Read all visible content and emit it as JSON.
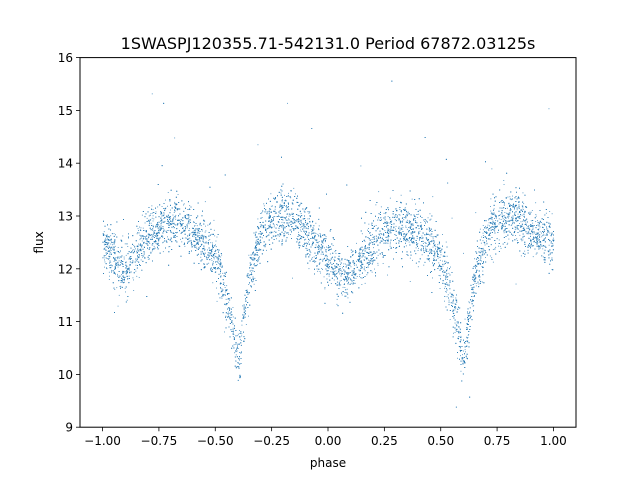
{
  "chart_data": {
    "type": "scatter",
    "title": "1SWASPJ120355.71-542131.0 Period 67872.03125s",
    "xlabel": "phase",
    "ylabel": "flux",
    "xlim": [
      -1.1,
      1.1
    ],
    "ylim": [
      9,
      16
    ],
    "xticks": [
      -1.0,
      -0.75,
      -0.5,
      -0.25,
      0.0,
      0.25,
      0.5,
      0.75,
      1.0
    ],
    "xtick_labels": [
      "−1.00",
      "−0.75",
      "−0.50",
      "−0.25",
      "0.00",
      "0.25",
      "0.50",
      "0.75",
      "1.00"
    ],
    "yticks": [
      9,
      10,
      11,
      12,
      13,
      14,
      15,
      16
    ],
    "ytick_labels": [
      "9",
      "10",
      "11",
      "12",
      "13",
      "14",
      "15",
      "16"
    ],
    "grid": false,
    "marker_color": "#1f77b4",
    "series": [
      {
        "description_points": "phase-folded light curve; representative sampled points (phase, flux)",
        "x": [
          -1.0,
          -0.95,
          -0.9,
          -0.85,
          -0.8,
          -0.75,
          -0.7,
          -0.65,
          -0.6,
          -0.55,
          -0.5,
          -0.47,
          -0.45,
          -0.43,
          -0.42,
          -0.41,
          -0.4,
          -0.39,
          -0.38,
          -0.36,
          -0.33,
          -0.3,
          -0.25,
          -0.2,
          -0.15,
          -0.1,
          -0.05,
          0.0,
          0.05,
          0.08,
          0.1,
          0.15,
          0.2,
          0.25,
          0.3,
          0.35,
          0.4,
          0.45,
          0.5,
          0.53,
          0.55,
          0.57,
          0.58,
          0.59,
          0.6,
          0.61,
          0.62,
          0.64,
          0.67,
          0.7,
          0.75,
          0.8,
          0.85,
          0.9,
          0.95,
          1.0
        ],
        "y": [
          12.5,
          12.2,
          12.0,
          12.3,
          12.6,
          12.8,
          12.9,
          12.9,
          12.7,
          12.5,
          12.2,
          11.8,
          11.4,
          11.0,
          10.7,
          10.4,
          10.3,
          10.5,
          10.9,
          11.6,
          12.2,
          12.6,
          12.9,
          13.0,
          12.9,
          12.7,
          12.4,
          12.2,
          11.9,
          11.8,
          11.9,
          12.2,
          12.5,
          12.7,
          12.8,
          12.8,
          12.7,
          12.5,
          12.2,
          11.8,
          11.4,
          11.0,
          10.7,
          10.4,
          10.3,
          10.5,
          10.9,
          11.6,
          12.2,
          12.6,
          12.9,
          13.0,
          12.9,
          12.7,
          12.6,
          12.5
        ]
      }
    ]
  }
}
